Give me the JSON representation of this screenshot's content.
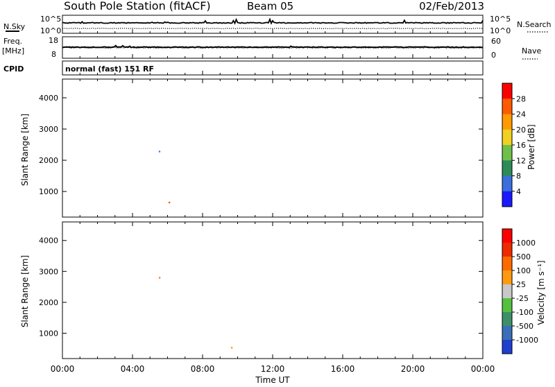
{
  "header": {
    "station": "South Pole Station (fitACF)",
    "beam": "Beam 05",
    "date": "02/Feb/2013"
  },
  "top_panels": {
    "nsky_label": "N.Sky",
    "nsky_ticks": [
      "10^5",
      "10^0"
    ],
    "nsearch_label": "N.Search",
    "nsearch_ticks": [
      "10^5",
      "10^0"
    ],
    "freq_label": "Freq.",
    "freq_unit": "[MHz]",
    "freq_ticks": [
      "18",
      "8"
    ],
    "nave_label": "Nave",
    "nave_ticks": [
      "60",
      "0"
    ],
    "cpid_label": "CPID",
    "cpid_value": "normal (fast) 151 RF"
  },
  "chart_data": [
    {
      "type": "heatmap",
      "name": "power-panel",
      "ylabel": "Slant Range [km]",
      "ylim": [
        180,
        4600
      ],
      "y_ticks": [
        1000,
        2000,
        3000,
        4000
      ],
      "x_ticks": [
        "00:00",
        "04:00",
        "08:00",
        "12:00",
        "16:00",
        "20:00",
        "00:00"
      ],
      "colorbar": {
        "label": "Power [dB]",
        "ticks": [
          "4",
          "8",
          "12",
          "16",
          "20",
          "24",
          "28"
        ],
        "colors": [
          "#1a1aff",
          "#3b6fdc",
          "#2e8b57",
          "#6fbf4a",
          "#f0d020",
          "#ff9a00",
          "#ff5a00",
          "#ff0000"
        ]
      }
    },
    {
      "type": "heatmap",
      "name": "velocity-panel",
      "ylabel": "Slant Range [km]",
      "ylim": [
        180,
        4600
      ],
      "y_ticks": [
        1000,
        2000,
        3000,
        4000
      ],
      "x_ticks": [
        "00:00",
        "04:00",
        "08:00",
        "12:00",
        "16:00",
        "20:00",
        "00:00"
      ],
      "xlabel": "Time UT",
      "colorbar": {
        "label": "Velocity [m s⁻¹]",
        "ticks": [
          "1000",
          "500",
          "100",
          "25",
          "-25",
          "-100",
          "-500",
          "-1000"
        ],
        "colors": [
          "#1f3fd0",
          "#3a6fb8",
          "#3d8f6a",
          "#55c040",
          "#c8c8c8",
          "#ff9a10",
          "#ff6a00",
          "#ee2a00",
          "#ff0000"
        ]
      }
    }
  ],
  "colors": {
    "axis": "#000000",
    "background": "#ffffff"
  }
}
